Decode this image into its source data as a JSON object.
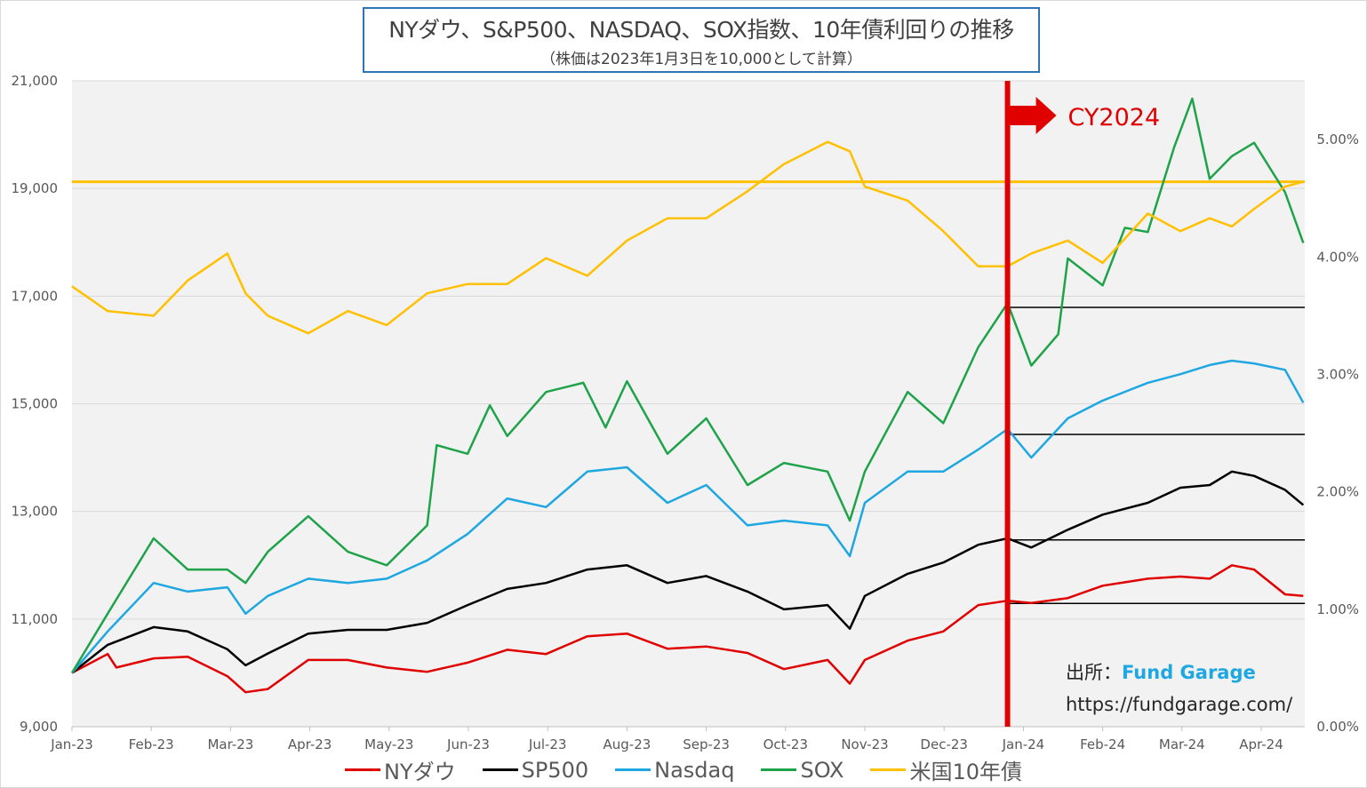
{
  "chart_data": {
    "type": "line",
    "title": "NYダウ、S&P500、NASDAQ、SOX指数、10年債利回りの推移",
    "subtitle": "（株価は2023年1月3日を10,000として計算）",
    "x_unit": "months since Jan-23",
    "x_ticks": [
      "Jan-23",
      "Feb-23",
      "Mar-23",
      "Apr-23",
      "May-23",
      "Jun-23",
      "Jul-23",
      "Aug-23",
      "Sep-23",
      "Oct-23",
      "Nov-23",
      "Dec-23",
      "Jan-24",
      "Feb-24",
      "Mar-24",
      "Apr-24"
    ],
    "ylim": [
      9000,
      21000
    ],
    "y_ticks": [
      "9,000",
      "11,000",
      "13,000",
      "15,000",
      "17,000",
      "19,000",
      "21,000"
    ],
    "y2lim": [
      0,
      5.5
    ],
    "y2_ticks": [
      "0.00%",
      "1.00%",
      "2.00%",
      "3.00%",
      "4.00%",
      "5.00%"
    ],
    "grid": true,
    "legend_position": "bottom",
    "series": [
      {
        "name": "NYダウ",
        "color": "#e00000",
        "axis": "left",
        "points": [
          [
            0,
            10000
          ],
          [
            0.45,
            10350
          ],
          [
            0.56,
            10100
          ],
          [
            1.03,
            10270
          ],
          [
            1.46,
            10300
          ],
          [
            1.96,
            9940
          ],
          [
            2.19,
            9640
          ],
          [
            2.47,
            9700
          ],
          [
            2.98,
            10240
          ],
          [
            3.48,
            10240
          ],
          [
            3.97,
            10100
          ],
          [
            4.48,
            10020
          ],
          [
            4.99,
            10190
          ],
          [
            5.49,
            10430
          ],
          [
            5.98,
            10350
          ],
          [
            6.5,
            10680
          ],
          [
            7.0,
            10730
          ],
          [
            7.51,
            10450
          ],
          [
            8.0,
            10490
          ],
          [
            8.52,
            10370
          ],
          [
            8.98,
            10070
          ],
          [
            9.53,
            10240
          ],
          [
            9.81,
            9800
          ],
          [
            10.0,
            10240
          ],
          [
            10.54,
            10600
          ],
          [
            10.99,
            10770
          ],
          [
            11.43,
            11260
          ],
          [
            11.8,
            11340
          ],
          [
            12.1,
            11300
          ],
          [
            12.56,
            11390
          ],
          [
            13.0,
            11620
          ],
          [
            13.57,
            11750
          ],
          [
            13.98,
            11790
          ],
          [
            14.35,
            11750
          ],
          [
            14.63,
            12000
          ],
          [
            14.91,
            11920
          ],
          [
            15.3,
            11460
          ],
          [
            15.53,
            11430
          ]
        ]
      },
      {
        "name": "SP500",
        "color": "#000000",
        "axis": "left",
        "points": [
          [
            0,
            10000
          ],
          [
            0.45,
            10520
          ],
          [
            1.03,
            10850
          ],
          [
            1.46,
            10770
          ],
          [
            1.96,
            10440
          ],
          [
            2.19,
            10140
          ],
          [
            2.47,
            10360
          ],
          [
            2.98,
            10730
          ],
          [
            3.48,
            10800
          ],
          [
            3.97,
            10800
          ],
          [
            4.48,
            10930
          ],
          [
            4.99,
            11260
          ],
          [
            5.49,
            11560
          ],
          [
            5.98,
            11670
          ],
          [
            6.5,
            11920
          ],
          [
            7.0,
            12000
          ],
          [
            7.51,
            11670
          ],
          [
            8.0,
            11800
          ],
          [
            8.52,
            11510
          ],
          [
            8.98,
            11180
          ],
          [
            9.53,
            11260
          ],
          [
            9.81,
            10820
          ],
          [
            10.0,
            11430
          ],
          [
            10.54,
            11840
          ],
          [
            10.99,
            12050
          ],
          [
            11.43,
            12380
          ],
          [
            11.8,
            12500
          ],
          [
            12.1,
            12330
          ],
          [
            12.56,
            12660
          ],
          [
            13.0,
            12940
          ],
          [
            13.57,
            13160
          ],
          [
            13.98,
            13440
          ],
          [
            14.35,
            13490
          ],
          [
            14.63,
            13740
          ],
          [
            14.91,
            13660
          ],
          [
            15.3,
            13400
          ],
          [
            15.53,
            13120
          ]
        ]
      },
      {
        "name": "Nasdaq",
        "color": "#1ea7e1",
        "axis": "left",
        "points": [
          [
            0,
            10000
          ],
          [
            0.45,
            10770
          ],
          [
            1.03,
            11670
          ],
          [
            1.46,
            11510
          ],
          [
            1.96,
            11590
          ],
          [
            2.19,
            11100
          ],
          [
            2.47,
            11430
          ],
          [
            2.98,
            11750
          ],
          [
            3.48,
            11670
          ],
          [
            3.97,
            11750
          ],
          [
            4.48,
            12090
          ],
          [
            4.99,
            12580
          ],
          [
            5.49,
            13240
          ],
          [
            5.98,
            13080
          ],
          [
            6.5,
            13740
          ],
          [
            7.0,
            13820
          ],
          [
            7.51,
            13160
          ],
          [
            8.0,
            13490
          ],
          [
            8.52,
            12740
          ],
          [
            8.98,
            12830
          ],
          [
            9.53,
            12740
          ],
          [
            9.81,
            12170
          ],
          [
            10.0,
            13160
          ],
          [
            10.54,
            13740
          ],
          [
            10.99,
            13740
          ],
          [
            11.43,
            14150
          ],
          [
            11.8,
            14530
          ],
          [
            12.1,
            14000
          ],
          [
            12.56,
            14730
          ],
          [
            13.0,
            15060
          ],
          [
            13.57,
            15390
          ],
          [
            13.98,
            15550
          ],
          [
            14.35,
            15720
          ],
          [
            14.63,
            15800
          ],
          [
            14.91,
            15750
          ],
          [
            15.3,
            15630
          ],
          [
            15.53,
            15020
          ]
        ]
      },
      {
        "name": "SOX",
        "color": "#1fa34a",
        "axis": "left",
        "points": [
          [
            0,
            10000
          ],
          [
            0.45,
            11100
          ],
          [
            1.03,
            12500
          ],
          [
            1.46,
            11920
          ],
          [
            1.96,
            11920
          ],
          [
            2.19,
            11670
          ],
          [
            2.47,
            12250
          ],
          [
            2.98,
            12910
          ],
          [
            3.48,
            12250
          ],
          [
            3.97,
            12000
          ],
          [
            4.48,
            12740
          ],
          [
            4.6,
            14230
          ],
          [
            4.99,
            14070
          ],
          [
            5.27,
            14970
          ],
          [
            5.49,
            14400
          ],
          [
            5.98,
            15220
          ],
          [
            6.45,
            15390
          ],
          [
            6.73,
            14560
          ],
          [
            7.0,
            15420
          ],
          [
            7.51,
            14070
          ],
          [
            8.0,
            14730
          ],
          [
            8.52,
            13490
          ],
          [
            8.98,
            13900
          ],
          [
            9.53,
            13740
          ],
          [
            9.81,
            12830
          ],
          [
            10.0,
            13740
          ],
          [
            10.54,
            15220
          ],
          [
            10.99,
            14640
          ],
          [
            11.43,
            16050
          ],
          [
            11.8,
            16870
          ],
          [
            12.1,
            15710
          ],
          [
            12.44,
            16290
          ],
          [
            12.56,
            17700
          ],
          [
            13.0,
            17200
          ],
          [
            13.28,
            18270
          ],
          [
            13.57,
            18190
          ],
          [
            13.9,
            19760
          ],
          [
            14.13,
            20670
          ],
          [
            14.35,
            19180
          ],
          [
            14.63,
            19600
          ],
          [
            14.91,
            19850
          ],
          [
            15.3,
            18930
          ],
          [
            15.53,
            17990
          ]
        ]
      },
      {
        "name": "米国10年債",
        "color": "#ffc000",
        "axis": "right",
        "points": [
          [
            0,
            3.75
          ],
          [
            0.45,
            3.54
          ],
          [
            1.03,
            3.5
          ],
          [
            1.46,
            3.8
          ],
          [
            1.96,
            4.03
          ],
          [
            2.19,
            3.69
          ],
          [
            2.47,
            3.5
          ],
          [
            2.98,
            3.35
          ],
          [
            3.48,
            3.54
          ],
          [
            3.97,
            3.42
          ],
          [
            4.48,
            3.69
          ],
          [
            4.99,
            3.77
          ],
          [
            5.49,
            3.77
          ],
          [
            5.98,
            3.99
          ],
          [
            6.5,
            3.84
          ],
          [
            7.0,
            4.14
          ],
          [
            7.51,
            4.33
          ],
          [
            8.0,
            4.33
          ],
          [
            8.52,
            4.56
          ],
          [
            8.98,
            4.79
          ],
          [
            9.53,
            4.98
          ],
          [
            9.81,
            4.9
          ],
          [
            10.0,
            4.6
          ],
          [
            10.54,
            4.48
          ],
          [
            10.99,
            4.22
          ],
          [
            11.43,
            3.92
          ],
          [
            11.8,
            3.92
          ],
          [
            12.1,
            4.03
          ],
          [
            12.56,
            4.14
          ],
          [
            13.0,
            3.95
          ],
          [
            13.57,
            4.37
          ],
          [
            13.98,
            4.22
          ],
          [
            14.35,
            4.33
          ],
          [
            14.63,
            4.26
          ],
          [
            14.91,
            4.41
          ],
          [
            15.3,
            4.6
          ],
          [
            15.53,
            4.64
          ]
        ]
      }
    ],
    "reference_lines": [
      {
        "name": "10年債 latest level",
        "axis": "right",
        "value": 4.64,
        "color": "#ffc000",
        "from": 0,
        "to": 15.55
      },
      {
        "name": "SOX start of 2024",
        "axis": "left",
        "value": 16790,
        "color": "#000000",
        "from": 11.8,
        "to": 15.55
      },
      {
        "name": "Nasdaq start of 2024",
        "axis": "left",
        "value": 14430,
        "color": "#000000",
        "from": 11.8,
        "to": 15.55
      },
      {
        "name": "SP500 start of 2024",
        "axis": "left",
        "value": 12470,
        "color": "#000000",
        "from": 11.8,
        "to": 15.55
      },
      {
        "name": "NYダウ start of 2024",
        "axis": "left",
        "value": 11290,
        "color": "#000000",
        "from": 11.8,
        "to": 15.55
      }
    ],
    "annotation": {
      "label": "CY2024",
      "x": 11.8,
      "color": "#e00000"
    }
  },
  "source": {
    "label": "出所：",
    "brand": "Fund Garage",
    "url": "https://fundgarage.com/"
  }
}
